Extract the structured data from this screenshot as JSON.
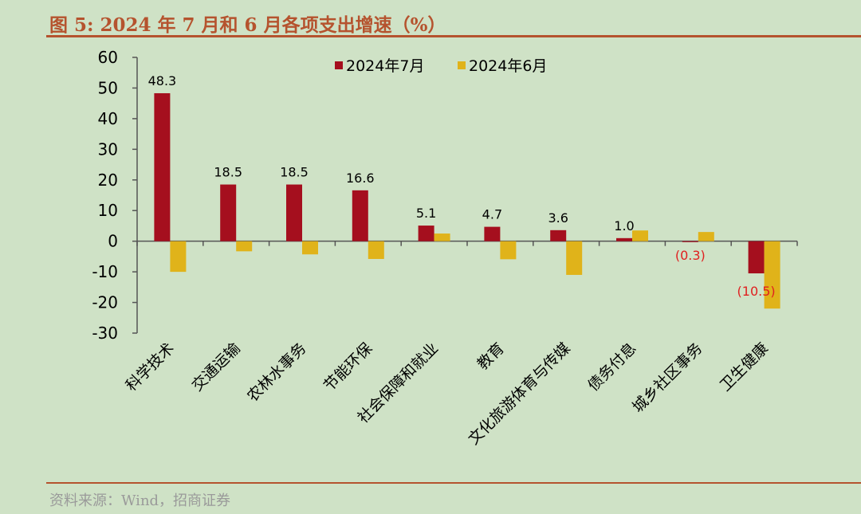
{
  "title": "图 5:  2024 年 7 月和 6 月各项支出增速（%）",
  "source": "资料来源：Wind，招商证券",
  "colors": {
    "jul": "#a50f1e",
    "jun": "#e0b31a",
    "accent": "#b5532e",
    "negative_label": "#e02020"
  },
  "chart_data": {
    "type": "bar",
    "title": "",
    "xlabel": "",
    "ylabel": "",
    "ylim": [
      -30,
      60
    ],
    "yticks": [
      "60",
      "50",
      "40",
      "30",
      "20",
      "10",
      "0",
      "-10",
      "-20",
      "-30"
    ],
    "legend_position": "top",
    "grid": false,
    "categories": [
      "科学技术",
      "交通运输",
      "农林水事务",
      "节能环保",
      "社会保障和就业",
      "教育",
      "文化旅游体育与传媒",
      "债务付息",
      "城乡社区事务",
      "卫生健康"
    ],
    "series": [
      {
        "name": "2024年7月",
        "values": [
          48.3,
          18.5,
          18.5,
          16.6,
          5.1,
          4.7,
          3.6,
          1.0,
          -0.3,
          -10.5
        ]
      },
      {
        "name": "2024年6月",
        "values": [
          -10,
          -3.3,
          -4.3,
          -5.8,
          2.5,
          -5.9,
          -11,
          3.5,
          3.0,
          -22
        ]
      }
    ],
    "data_labels": [
      "48.3",
      "18.5",
      "18.5",
      "16.6",
      "5.1",
      "4.7",
      "3.6",
      "1.0",
      "(0.3)",
      "(10.5)"
    ]
  }
}
